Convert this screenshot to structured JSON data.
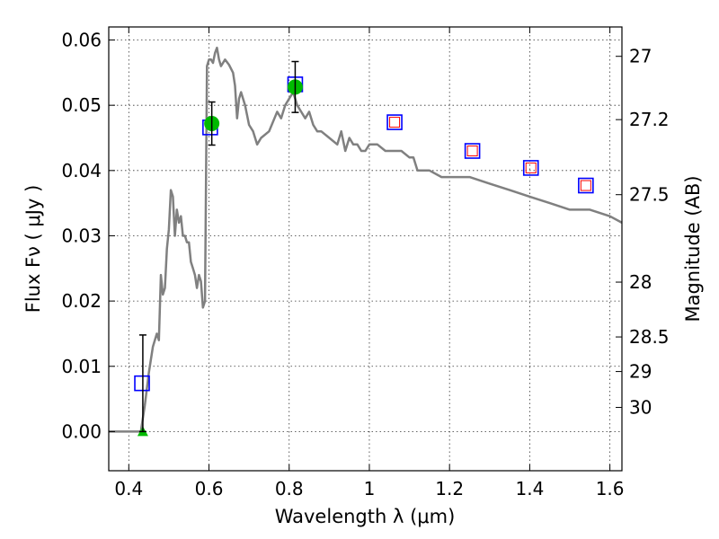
{
  "chart_data": {
    "type": "scatter",
    "xlabel": "Wavelength  λ (μm)",
    "ylabel": "Flux  Fν  ( μJy )",
    "ylabel_right": "Magnitude (AB)",
    "xlim": [
      0.35,
      1.63
    ],
    "ylim": [
      -0.006,
      0.062
    ],
    "grid": true,
    "x_ticks": [
      0.4,
      0.6,
      0.8,
      1.0,
      1.2,
      1.4,
      1.6
    ],
    "x_tick_labels": [
      "0.4",
      "0.6",
      "0.8",
      "1",
      "1.2",
      "1.4",
      "1.6"
    ],
    "y_ticks": [
      0.0,
      0.01,
      0.02,
      0.03,
      0.04,
      0.05,
      0.06
    ],
    "y_tick_labels": [
      "0.00",
      "0.01",
      "0.02",
      "0.03",
      "0.04",
      "0.05",
      "0.06"
    ],
    "right_ticks": [
      {
        "label": "27",
        "flux": 0.0575
      },
      {
        "label": "27.2",
        "flux": 0.0478
      },
      {
        "label": "27.5",
        "flux": 0.0363
      },
      {
        "label": "28",
        "flux": 0.0229
      },
      {
        "label": "28.5",
        "flux": 0.0145
      },
      {
        "label": "29",
        "flux": 0.0092
      },
      {
        "label": "30",
        "flux": 0.0037
      }
    ],
    "colors": {
      "model": "#808080",
      "observed_marker": "#00bb00",
      "square_outline": "#0000ff",
      "inner_square": "#ff0000",
      "errorbar": "#000000"
    },
    "series": [
      {
        "kind": "line",
        "x": [
          0.35,
          0.43,
          0.435,
          0.44,
          0.45,
          0.46,
          0.47,
          0.475,
          0.48,
          0.485,
          0.49,
          0.495,
          0.5,
          0.505,
          0.51,
          0.515,
          0.52,
          0.525,
          0.53,
          0.535,
          0.54,
          0.545,
          0.55,
          0.555,
          0.56,
          0.565,
          0.57,
          0.575,
          0.58,
          0.585,
          0.59,
          0.595,
          0.6,
          0.605,
          0.61,
          0.615,
          0.62,
          0.625,
          0.63,
          0.64,
          0.65,
          0.66,
          0.665,
          0.67,
          0.675,
          0.68,
          0.69,
          0.7,
          0.71,
          0.72,
          0.73,
          0.75,
          0.77,
          0.78,
          0.79,
          0.8,
          0.81,
          0.82,
          0.83,
          0.84,
          0.85,
          0.86,
          0.87,
          0.88,
          0.9,
          0.92,
          0.93,
          0.94,
          0.95,
          0.96,
          0.97,
          0.98,
          0.99,
          1.0,
          1.02,
          1.04,
          1.06,
          1.08,
          1.1,
          1.11,
          1.12,
          1.15,
          1.18,
          1.2,
          1.25,
          1.3,
          1.35,
          1.4,
          1.45,
          1.5,
          1.55,
          1.6,
          1.63
        ],
        "y": [
          0.0,
          0.0,
          0.002,
          0.004,
          0.009,
          0.013,
          0.015,
          0.014,
          0.024,
          0.021,
          0.022,
          0.028,
          0.031,
          0.037,
          0.036,
          0.03,
          0.034,
          0.032,
          0.033,
          0.03,
          0.03,
          0.029,
          0.029,
          0.026,
          0.025,
          0.024,
          0.022,
          0.024,
          0.023,
          0.019,
          0.02,
          0.056,
          0.057,
          0.057,
          0.0565,
          0.058,
          0.0588,
          0.057,
          0.056,
          0.057,
          0.0562,
          0.055,
          0.053,
          0.048,
          0.051,
          0.052,
          0.05,
          0.047,
          0.046,
          0.044,
          0.045,
          0.046,
          0.049,
          0.048,
          0.05,
          0.051,
          0.052,
          0.05,
          0.049,
          0.048,
          0.049,
          0.047,
          0.046,
          0.046,
          0.045,
          0.044,
          0.046,
          0.043,
          0.045,
          0.044,
          0.044,
          0.043,
          0.043,
          0.044,
          0.044,
          0.043,
          0.043,
          0.043,
          0.042,
          0.042,
          0.04,
          0.04,
          0.039,
          0.039,
          0.039,
          0.038,
          0.037,
          0.036,
          0.035,
          0.034,
          0.034,
          0.033,
          0.032
        ]
      },
      {
        "kind": "square_markers",
        "x": [
          0.433,
          0.603,
          0.815
        ],
        "y": [
          0.0074,
          0.0466,
          0.0532
        ]
      },
      {
        "kind": "square_markers_with_inner",
        "x": [
          1.063,
          1.257,
          1.403,
          1.54
        ],
        "y": [
          0.0474,
          0.043,
          0.0404,
          0.0377
        ]
      },
      {
        "kind": "circle_markers",
        "x": [
          0.607,
          0.815
        ],
        "y": [
          0.0472,
          0.0528
        ]
      },
      {
        "kind": "triangle_markers",
        "x": [
          0.435
        ],
        "y": [
          0.0
        ]
      },
      {
        "kind": "errorbars",
        "x": [
          0.435,
          0.607,
          0.815
        ],
        "y": [
          0.0074,
          0.0472,
          0.0528
        ],
        "err": [
          0.0074,
          0.0033,
          0.0039
        ]
      }
    ]
  }
}
